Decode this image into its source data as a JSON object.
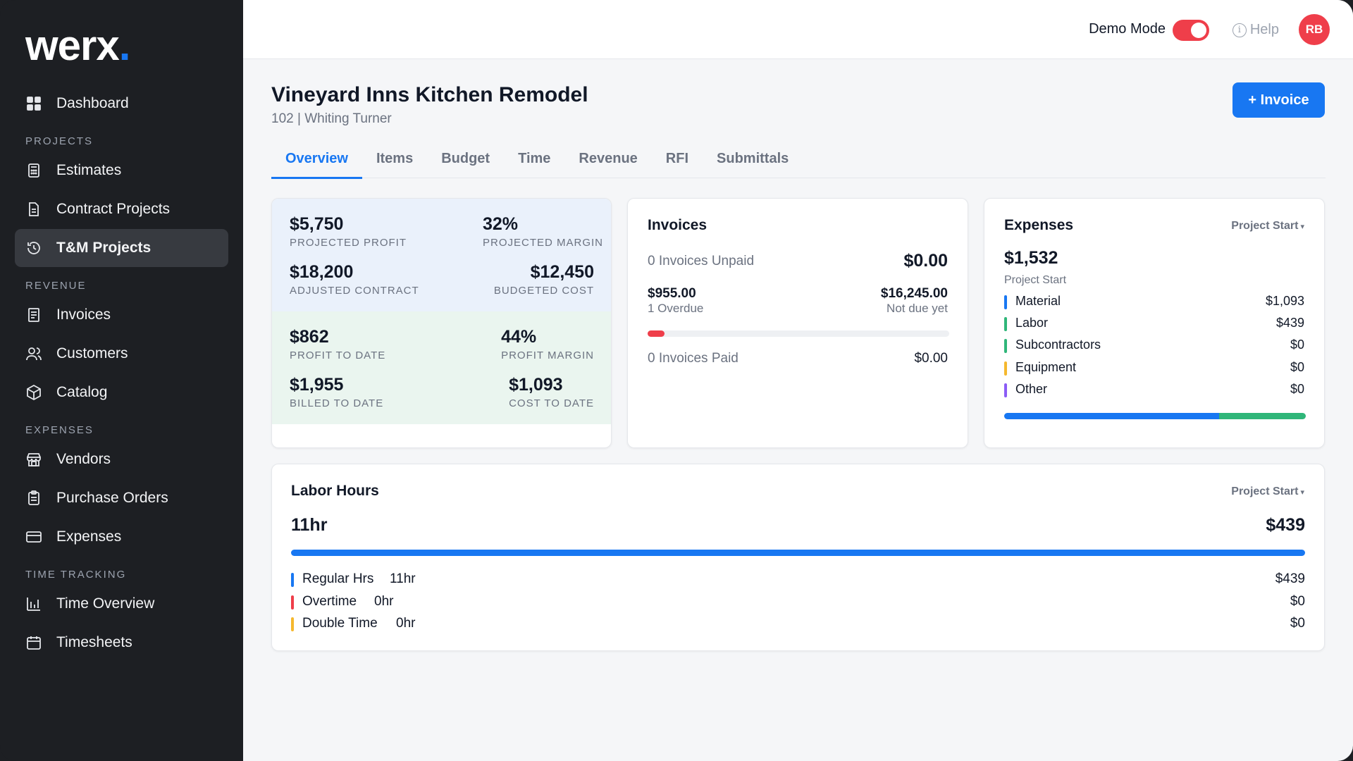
{
  "brand": {
    "name": "werx",
    "dot": "."
  },
  "sidebar": {
    "dashboard": {
      "label": "Dashboard"
    },
    "sections": {
      "projects": "PROJECTS",
      "revenue": "REVENUE",
      "expenses": "EXPENSES",
      "time": "TIME TRACKING"
    },
    "items": {
      "estimates": "Estimates",
      "contract_projects": "Contract Projects",
      "tm_projects": "T&M Projects",
      "invoices": "Invoices",
      "customers": "Customers",
      "catalog": "Catalog",
      "vendors": "Vendors",
      "purchase_orders": "Purchase Orders",
      "expenses": "Expenses",
      "time_overview": "Time Overview",
      "timesheets": "Timesheets"
    }
  },
  "topbar": {
    "demo_mode_label": "Demo Mode",
    "help_label": "Help",
    "help_glyph": "i",
    "avatar_initials": "RB"
  },
  "project": {
    "title": "Vineyard Inns Kitchen Remodel",
    "subtitle": "102 | Whiting Turner",
    "invoice_button": "+ Invoice"
  },
  "tabs": [
    "Overview",
    "Items",
    "Budget",
    "Time",
    "Revenue",
    "RFI",
    "Submittals"
  ],
  "profit_card": {
    "projected_profit": {
      "value": "$5,750",
      "label": "PROJECTED PROFIT"
    },
    "projected_margin": {
      "value": "32%",
      "label": "PROJECTED MARGIN"
    },
    "adjusted_contract": {
      "value": "$18,200",
      "label": "ADJUSTED CONTRACT"
    },
    "budgeted_cost": {
      "value": "$12,450",
      "label": "BUDGETED COST"
    },
    "profit_to_date": {
      "value": "$862",
      "label": "PROFIT TO DATE"
    },
    "profit_margin": {
      "value": "44%",
      "label": "PROFIT MARGIN"
    },
    "billed_to_date": {
      "value": "$1,955",
      "label": "BILLED TO DATE"
    },
    "cost_to_date": {
      "value": "$1,093",
      "label": "COST TO DATE"
    }
  },
  "invoices_card": {
    "title": "Invoices",
    "unpaid_label": "0 Invoices Unpaid",
    "unpaid_amount": "$0.00",
    "overdue_amount": "$955.00",
    "overdue_label": "1 Overdue",
    "not_due_amount": "$16,245.00",
    "not_due_label": "Not due yet",
    "overdue_fraction": 0.055,
    "overdue_color": "#ef3e4a",
    "paid_label": "0 Invoices Paid",
    "paid_amount": "$0.00"
  },
  "expenses_card": {
    "title": "Expenses",
    "period": "Project Start",
    "total": "$1,532",
    "total_label": "Project Start",
    "categories": [
      {
        "name": "Material",
        "amount": "$1,093",
        "value": 1093,
        "color": "#1877f2"
      },
      {
        "name": "Labor",
        "amount": "$439",
        "value": 439,
        "color": "#2fb679"
      },
      {
        "name": "Subcontractors",
        "amount": "$0",
        "value": 0,
        "color": "#2fb679"
      },
      {
        "name": "Equipment",
        "amount": "$0",
        "value": 0,
        "color": "#f5b82e"
      },
      {
        "name": "Other",
        "amount": "$0",
        "value": 0,
        "color": "#8b5cf6"
      }
    ]
  },
  "labor_card": {
    "title": "Labor Hours",
    "period": "Project Start",
    "hours": "11hr",
    "total": "$439",
    "bar_color": "#1877f2",
    "rows": [
      {
        "name": "Regular Hrs",
        "hours": "11hr",
        "amount": "$439",
        "color": "#1877f2"
      },
      {
        "name": "Overtime",
        "hours": "0hr",
        "amount": "$0",
        "color": "#ef3e4a"
      },
      {
        "name": "Double Time",
        "hours": "0hr",
        "amount": "$0",
        "color": "#f5b82e"
      }
    ]
  }
}
